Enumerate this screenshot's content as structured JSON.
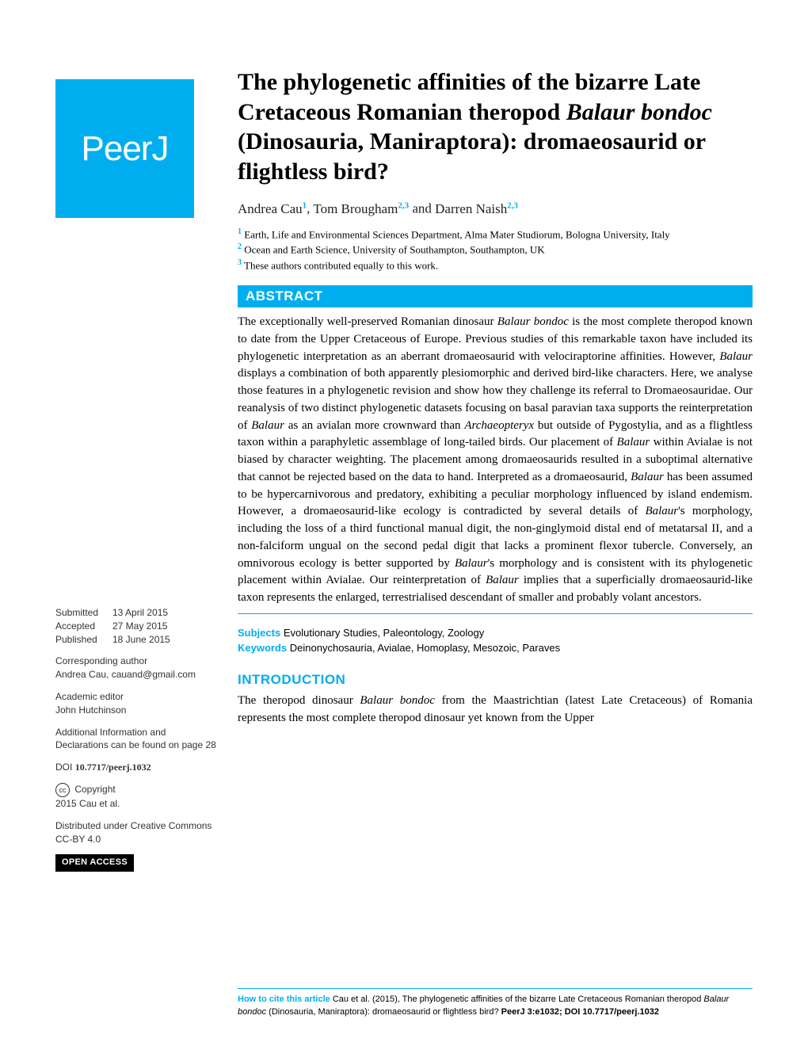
{
  "logo": {
    "text": "PeerJ"
  },
  "title": {
    "pre": "The phylogenetic affinities of the bizarre Late Cretaceous Romanian theropod ",
    "italic": "Balaur bondoc",
    "post": " (Dinosauria, Maniraptora): dromaeosaurid or flightless bird?"
  },
  "authors": [
    {
      "name": "Andrea Cau",
      "sup": "1"
    },
    {
      "name": "Tom Brougham",
      "sup": "2,3"
    },
    {
      "name": "Darren Naish",
      "sup": "2,3"
    }
  ],
  "affiliations": [
    {
      "sup": "1",
      "text": "Earth, Life and Environmental Sciences Department, Alma Mater Studiorum, Bologna University, Italy"
    },
    {
      "sup": "2",
      "text": "Ocean and Earth Science, University of Southampton, Southampton, UK"
    },
    {
      "sup": "3",
      "text": "These authors contributed equally to this work."
    }
  ],
  "abstract": {
    "header": "ABSTRACT",
    "body_parts": [
      "The exceptionally well-preserved Romanian dinosaur ",
      {
        "italic": "Balaur bondoc"
      },
      " is the most complete theropod known to date from the Upper Cretaceous of Europe. Previous studies of this remarkable taxon have included its phylogenetic interpretation as an aberrant dromaeosaurid with velociraptorine affinities. However, ",
      {
        "italic": "Balaur"
      },
      " displays a combination of both apparently plesiomorphic and derived bird-like characters. Here, we analyse those features in a phylogenetic revision and show how they challenge its referral to Dromaeosauridae. Our reanalysis of two distinct phylogenetic datasets focusing on basal paravian taxa supports the reinterpretation of ",
      {
        "italic": "Balaur"
      },
      " as an avialan more crownward than ",
      {
        "italic": "Archaeopteryx"
      },
      " but outside of Pygostylia, and as a flightless taxon within a paraphyletic assemblage of long-tailed birds. Our placement of ",
      {
        "italic": "Balaur"
      },
      " within Avialae is not biased by character weighting. The placement among dromaeosaurids resulted in a suboptimal alternative that cannot be rejected based on the data to hand. Interpreted as a dromaeosaurid, ",
      {
        "italic": "Balaur"
      },
      " has been assumed to be hypercarnivorous and predatory, exhibiting a peculiar morphology influenced by island endemism. However, a dromaeosaurid-like ecology is contradicted by several details of ",
      {
        "italic": "Balaur"
      },
      "'s morphology, including the loss of a third functional manual digit, the non-ginglymoid distal end of metatarsal II, and a non-falciform ungual on the second pedal digit that lacks a prominent flexor tubercle. Conversely, an omnivorous ecology is better supported by ",
      {
        "italic": "Balaur"
      },
      "'s morphology and is consistent with its phylogenetic placement within Avialae. Our reinterpretation of ",
      {
        "italic": "Balaur"
      },
      " implies that a superficially dromaeosaurid-like taxon represents the enlarged, terrestrialised descendant of smaller and probably volant ancestors."
    ]
  },
  "subjects": {
    "label": "Subjects",
    "text": "Evolutionary Studies, Paleontology, Zoology"
  },
  "keywords": {
    "label": "Keywords",
    "text": "Deinonychosauria, Avialae, Homoplasy, Mesozoic, Paraves"
  },
  "introduction": {
    "header": "INTRODUCTION",
    "body_parts": [
      "The theropod dinosaur ",
      {
        "italic": "Balaur bondoc"
      },
      " from the Maastrichtian (latest Late Cretaceous) of Romania represents the most complete theropod dinosaur yet known from the Upper"
    ]
  },
  "sidebar": {
    "dates": [
      {
        "label": "Submitted",
        "value": "13 April 2015"
      },
      {
        "label": "Accepted",
        "value": "27 May 2015"
      },
      {
        "label": "Published",
        "value": "18 June 2015"
      }
    ],
    "corresponding": {
      "label": "Corresponding author",
      "value": "Andrea Cau, cauand@gmail.com"
    },
    "editor": {
      "label": "Academic editor",
      "value": "John Hutchinson"
    },
    "additional": "Additional Information and Declarations can be found on page 28",
    "doi": {
      "label": "DOI",
      "value": "10.7717/peerj.1032"
    },
    "copyright": {
      "icon": "cc",
      "label": "Copyright",
      "value": "2015 Cau et al."
    },
    "license": "Distributed under Creative Commons CC-BY 4.0",
    "open_access": "OPEN ACCESS"
  },
  "footer": {
    "label": "How to cite this article",
    "text_parts": [
      " Cau et al. (2015), The phylogenetic affinities of the bizarre Late Cretaceous Romanian theropod ",
      {
        "italic": "Balaur bondoc"
      },
      " (Dinosauria, Maniraptora): dromaeosaurid or flightless bird? ",
      {
        "bold": "PeerJ 3:e1032; DOI 10.7717/peerj.1032"
      }
    ]
  },
  "colors": {
    "accent": "#00aeef",
    "text": "#000000",
    "sidebar_text": "#333333",
    "background": "#ffffff"
  },
  "typography": {
    "title_fontsize": 30,
    "body_fontsize": 15,
    "sidebar_fontsize": 12,
    "footer_fontsize": 11
  }
}
